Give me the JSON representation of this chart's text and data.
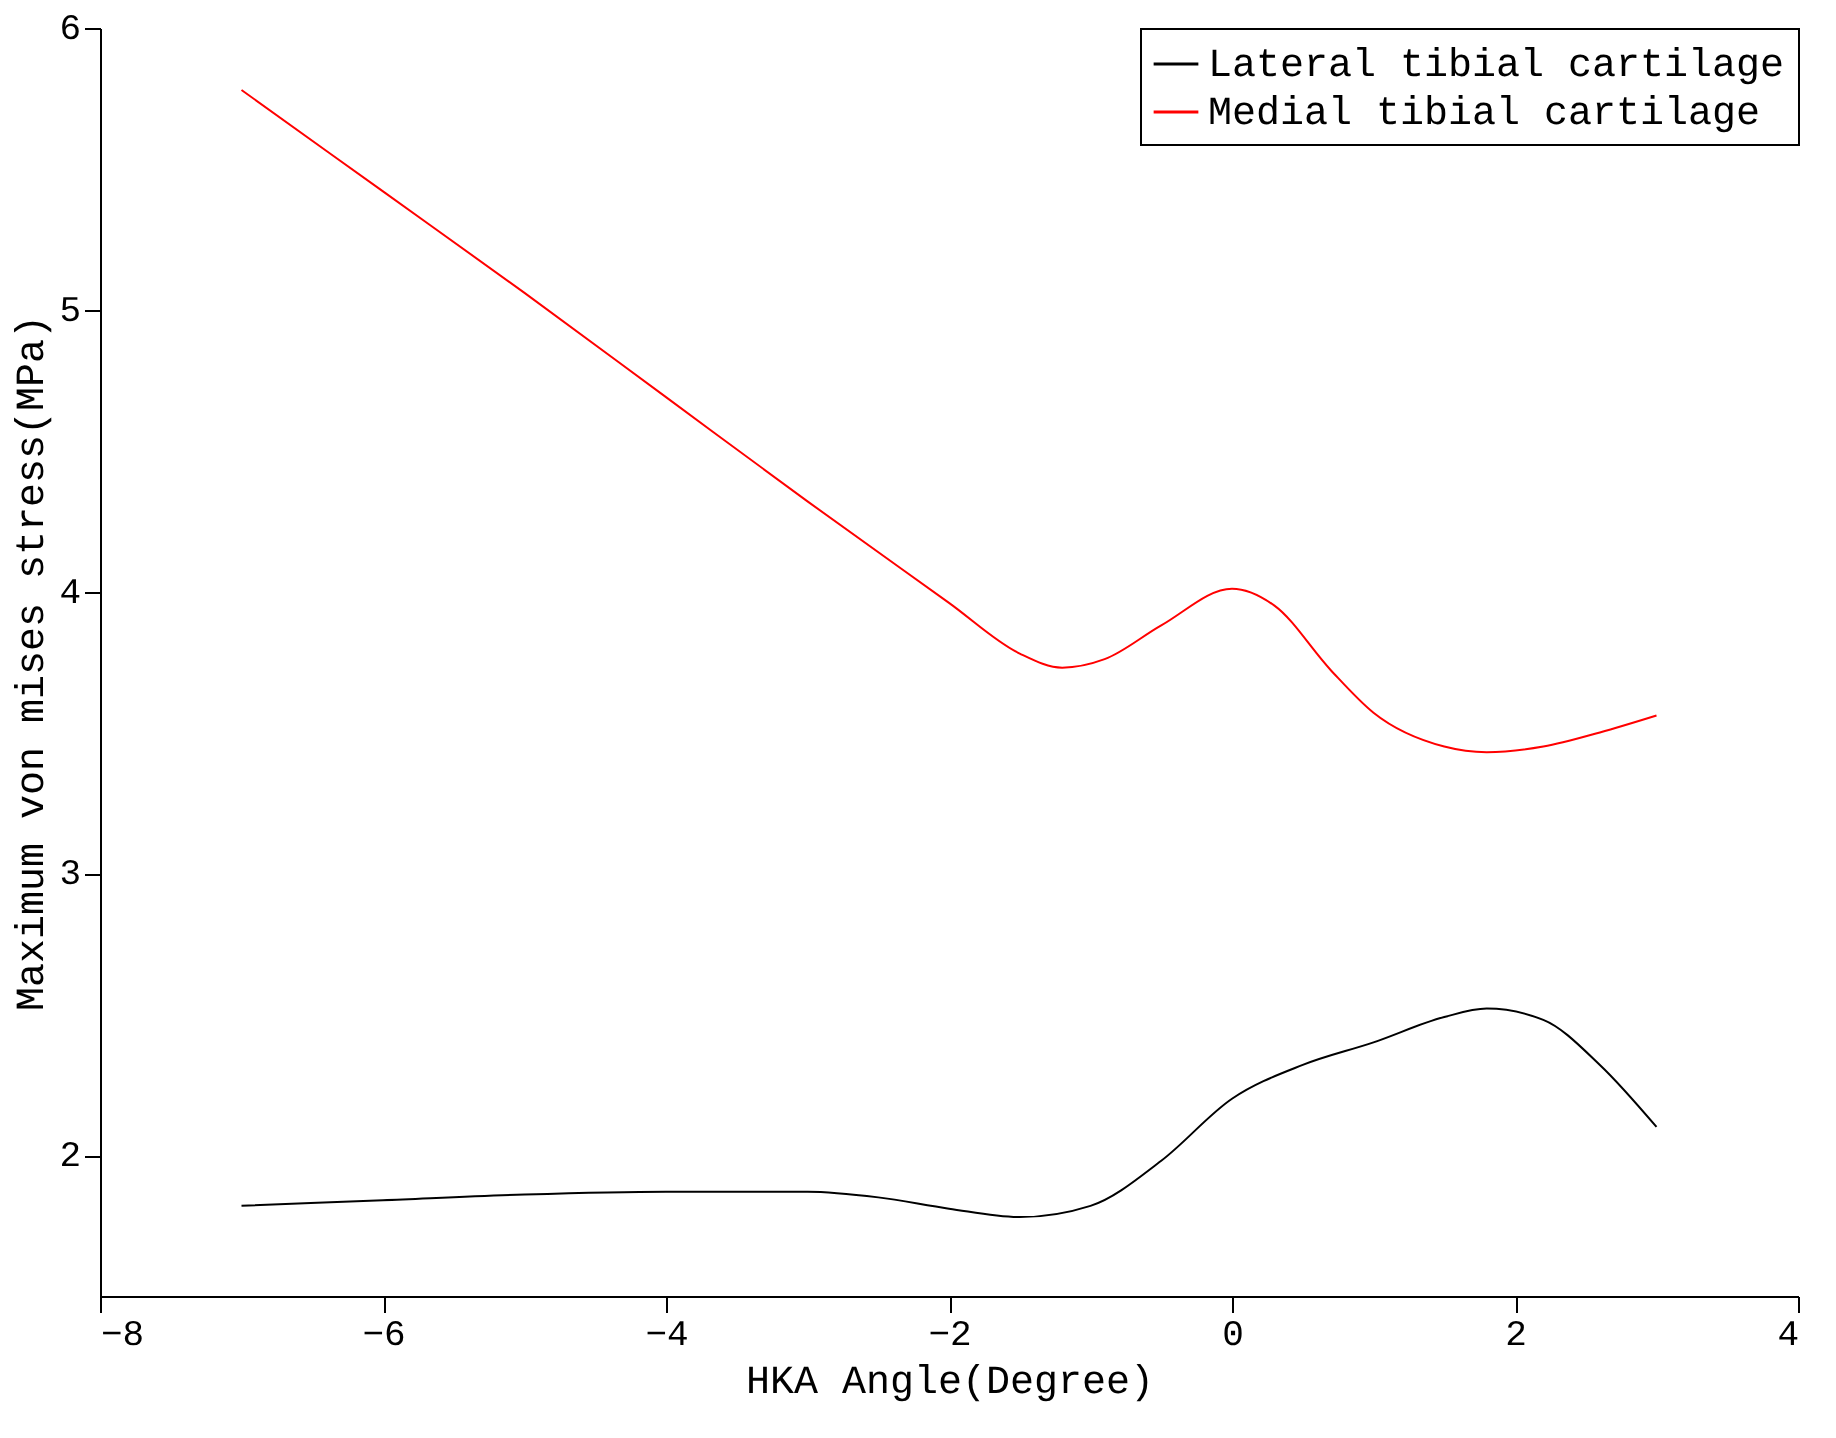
{
  "chart_data": {
    "type": "line",
    "xlabel": "HKA Angle(Degree)",
    "ylabel": "Maximum von mises stress(MPa)",
    "xlim": [
      -8,
      4
    ],
    "xticks": [
      -8,
      -6,
      -4,
      -2,
      0,
      2,
      4
    ],
    "ylim": [
      1.5,
      6
    ],
    "yticks": [
      2,
      3,
      4,
      5,
      6
    ],
    "grid": false,
    "legend": "top right",
    "marker": "none",
    "line_style": "solid",
    "series": [
      {
        "name": "Lateral tibial cartilage",
        "color": "#000000",
        "x": [
          -7,
          -6,
          -5,
          -4,
          -3,
          -2.5,
          -2,
          -1.5,
          -1,
          -0.5,
          0,
          0.5,
          1,
          1.5,
          1.8,
          2.2,
          2.6,
          3
        ],
        "values": [
          1.82,
          1.84,
          1.86,
          1.87,
          1.87,
          1.85,
          1.81,
          1.78,
          1.82,
          1.98,
          2.2,
          2.32,
          2.4,
          2.49,
          2.52,
          2.48,
          2.32,
          2.1
        ]
      },
      {
        "name": "Medial tibial cartilage",
        "color": "#ff0000",
        "x": [
          -7,
          -6,
          -5,
          -4,
          -3,
          -2,
          -1.5,
          -1.2,
          -0.9,
          -0.5,
          0,
          0.3,
          0.7,
          1,
          1.5,
          1.8,
          2.2,
          2.6,
          3
        ],
        "values": [
          5.78,
          5.42,
          5.06,
          4.69,
          4.32,
          3.96,
          3.78,
          3.73,
          3.76,
          3.88,
          4.01,
          3.95,
          3.72,
          3.57,
          3.45,
          3.43,
          3.45,
          3.5,
          3.56
        ]
      }
    ]
  }
}
